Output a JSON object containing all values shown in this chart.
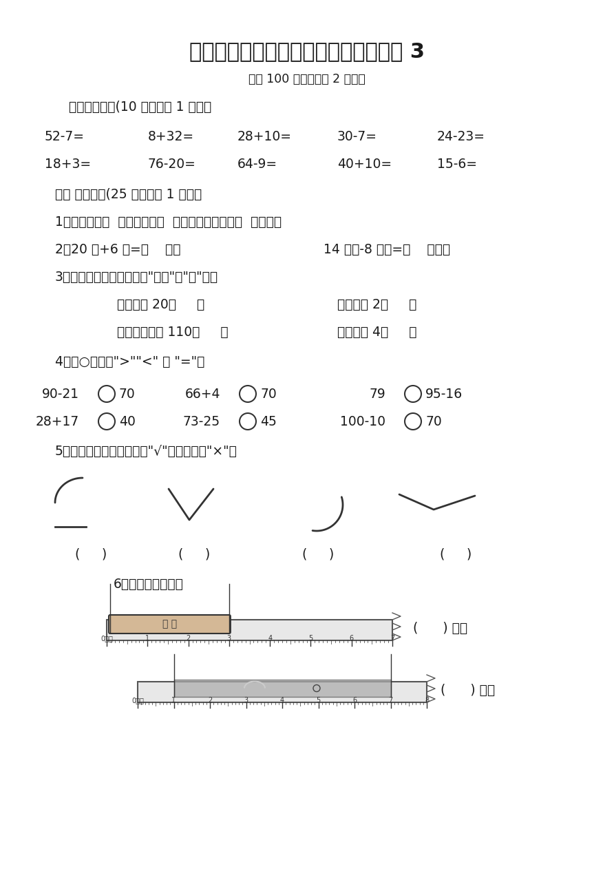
{
  "title": "新人教版小学二年级上册数学期中试题 3",
  "subtitle": "（共 100 分，含卷面 2 分。）",
  "section1_header": "一、我会算。(10 分，每空 1 分。）",
  "row1": [
    "52-7=",
    "8+32=",
    "28+10=",
    "30-7=",
    "24-23="
  ],
  "row2": [
    "18+3=",
    "76-20=",
    "64-9=",
    "40+10=",
    "15-6="
  ],
  "section2_header": "二、 我会填。(25 分，每空 1 分。）",
  "q1": "1、一个角有（  ）个顶点和（  ）条边，正方形有（  ）个角。",
  "q2_left": "2、20 米+6 米=（    ）米",
  "q2_right": "14 厘米-8 厘米=（    ）厘米",
  "q3_header": "3、填上合适的长度单位（\"厘米\"或\"米\"）。",
  "q3_items": [
    [
      "鞋大约长 20（     ）",
      "床大约长 2（     ）"
    ],
    [
      "小朋友大约高 110（     ）",
      "黑板约长 4（     ）"
    ]
  ],
  "q4_header": "4、在○里填上\">\"\"<\" 或 \"=\"。",
  "q4_row1": [
    "90-21○70",
    "66+4○70",
    "79○95-16"
  ],
  "q4_row2": [
    "28+17○40",
    "73-25○45",
    "100-10○70"
  ],
  "q5_header": "5、下面的图形中是角的打\"√\"，不是的打\"×\"。",
  "q6_header": "6、看尺子写长度。",
  "bg_color": "#ffffff",
  "text_color": "#1a1a1a"
}
